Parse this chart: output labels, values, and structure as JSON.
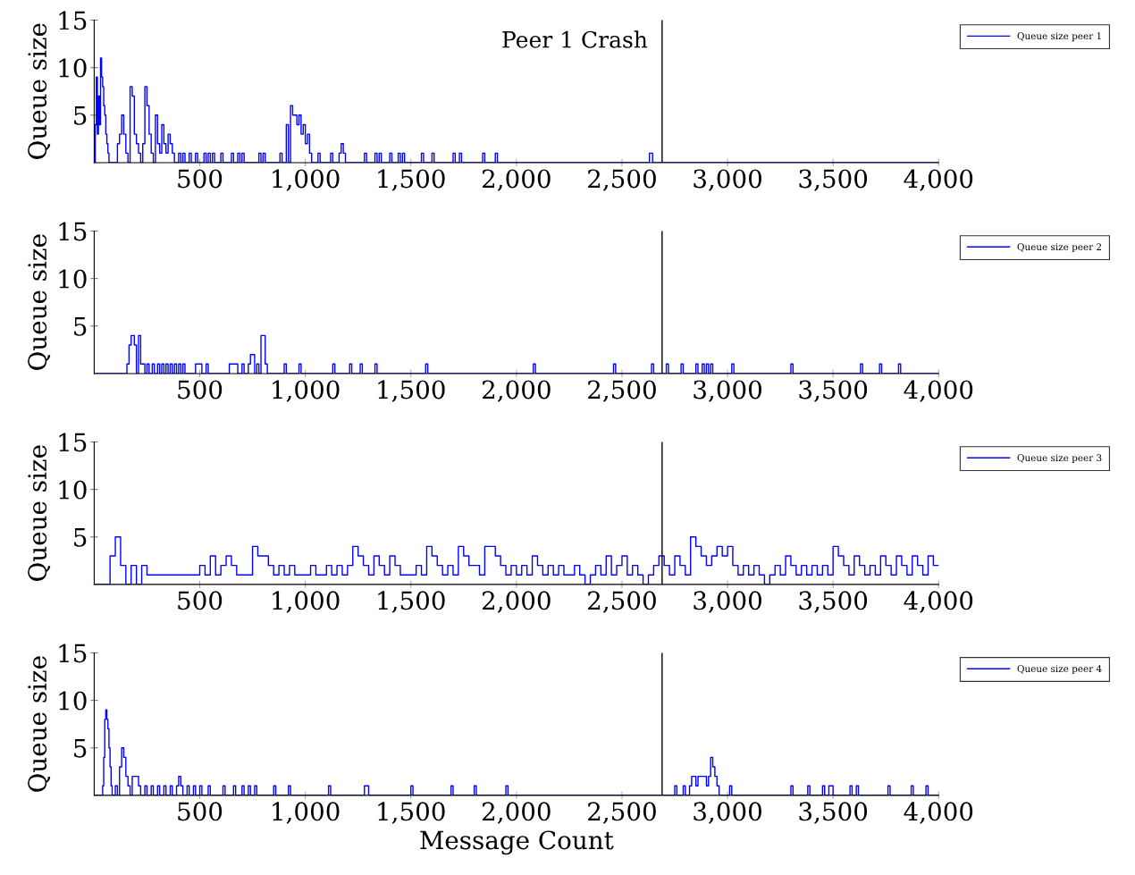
{
  "chart_data": [
    {
      "type": "step",
      "ylabel": "Queue size",
      "xlim": [
        0,
        4000
      ],
      "ylim": [
        0,
        15
      ],
      "xticks": [
        500,
        {
          "value": 1000,
          "label": "1,000"
        },
        {
          "value": 1500,
          "label": "1,500"
        },
        {
          "value": 2000,
          "label": "2,000"
        },
        {
          "value": 2500,
          "label": "2,500"
        },
        {
          "value": 3000,
          "label": "3,000"
        },
        {
          "value": 3500,
          "label": "3,500"
        },
        {
          "value": 4000,
          "label": "4,000"
        }
      ],
      "yticks": [
        5,
        10,
        15
      ],
      "legend": "right",
      "ref_lines": [
        {
          "axis": "x",
          "value": 2690,
          "color": "#000000",
          "label": "Peer 1 Crash"
        }
      ],
      "series": [
        {
          "name": "Queue size peer 1",
          "color": "#0000ff",
          "x": [
            0,
            5,
            10,
            15,
            20,
            25,
            30,
            35,
            40,
            45,
            50,
            55,
            60,
            65,
            70,
            110,
            120,
            130,
            140,
            150,
            160,
            170,
            180,
            190,
            200,
            210,
            220,
            230,
            240,
            250,
            260,
            270,
            280,
            290,
            300,
            310,
            320,
            330,
            340,
            350,
            360,
            370,
            380,
            400,
            410,
            420,
            430,
            450,
            460,
            480,
            490,
            520,
            530,
            540,
            550,
            560,
            570,
            600,
            610,
            650,
            660,
            680,
            690,
            700,
            710,
            780,
            790,
            800,
            810,
            880,
            890,
            910,
            920,
            930,
            940,
            950,
            960,
            970,
            980,
            990,
            1000,
            1010,
            1020,
            1030,
            1060,
            1070,
            1120,
            1130,
            1160,
            1170,
            1180,
            1190,
            1280,
            1290,
            1330,
            1340,
            1350,
            1360,
            1400,
            1410,
            1440,
            1450,
            1460,
            1470,
            1550,
            1560,
            1600,
            1610,
            1700,
            1710,
            1730,
            1740,
            1840,
            1850,
            1900,
            1910,
            2630,
            2645,
            4000
          ],
          "values": [
            0,
            4,
            9,
            3,
            7,
            4,
            11,
            9,
            8,
            6,
            5,
            3,
            2,
            1,
            0,
            2,
            3,
            5,
            3,
            1,
            0,
            8,
            7,
            3,
            2,
            1,
            0,
            2,
            8,
            6,
            3,
            1,
            0,
            5,
            2,
            1,
            4,
            2,
            1,
            3,
            2,
            1,
            0,
            1,
            0,
            1,
            0,
            1,
            0,
            1,
            0,
            1,
            0,
            1,
            0,
            1,
            0,
            1,
            0,
            1,
            0,
            1,
            0,
            1,
            0,
            1,
            0,
            1,
            0,
            1,
            0,
            4,
            0,
            6,
            5,
            5,
            4,
            5,
            3,
            4,
            2,
            3,
            1,
            0,
            1,
            0,
            1,
            0,
            1,
            2,
            1,
            0,
            1,
            0,
            1,
            0,
            1,
            0,
            1,
            0,
            1,
            0,
            1,
            0,
            1,
            0,
            1,
            0,
            1,
            0,
            1,
            0,
            1,
            0,
            1,
            0,
            1,
            0,
            0
          ]
        }
      ]
    },
    {
      "type": "step",
      "ylabel": "Queue size",
      "xlim": [
        0,
        4000
      ],
      "ylim": [
        0,
        15
      ],
      "xticks": [
        500,
        {
          "value": 1000,
          "label": "1,000"
        },
        {
          "value": 1500,
          "label": "1,500"
        },
        {
          "value": 2000,
          "label": "2,000"
        },
        {
          "value": 2500,
          "label": "2,500"
        },
        {
          "value": 3000,
          "label": "3,000"
        },
        {
          "value": 3500,
          "label": "3,500"
        },
        {
          "value": 4000,
          "label": "4,000"
        }
      ],
      "yticks": [
        5,
        10,
        15
      ],
      "legend": "right",
      "ref_lines": [
        {
          "axis": "x",
          "value": 2690,
          "color": "#000000"
        }
      ],
      "series": [
        {
          "name": "Queue size peer 2",
          "color": "#0000ff",
          "x": [
            0,
            155,
            165,
            175,
            190,
            200,
            210,
            220,
            230,
            240,
            250,
            260,
            275,
            285,
            300,
            310,
            320,
            330,
            340,
            350,
            360,
            370,
            380,
            390,
            400,
            410,
            420,
            430,
            480,
            510,
            530,
            540,
            640,
            680,
            700,
            710,
            730,
            740,
            760,
            770,
            780,
            790,
            810,
            820,
            900,
            910,
            970,
            980,
            1130,
            1140,
            1210,
            1220,
            1260,
            1270,
            1330,
            1340,
            1570,
            1580,
            2080,
            2090,
            2460,
            2470,
            2640,
            2650,
            2710,
            2720,
            2780,
            2790,
            2850,
            2860,
            2880,
            2890,
            2900,
            2910,
            2920,
            2930,
            3020,
            3030,
            3300,
            3310,
            3630,
            3640,
            3720,
            3730,
            3810,
            3820,
            4000
          ],
          "values": [
            0,
            1,
            3,
            4,
            3,
            0,
            4,
            1,
            1,
            0,
            1,
            0,
            1,
            0,
            1,
            0,
            1,
            0,
            1,
            0,
            1,
            0,
            1,
            0,
            1,
            0,
            1,
            0,
            1,
            0,
            1,
            0,
            1,
            0,
            1,
            0,
            1,
            2,
            0,
            1,
            0,
            4,
            1,
            0,
            1,
            0,
            1,
            0,
            1,
            0,
            1,
            0,
            1,
            0,
            1,
            0,
            1,
            0,
            1,
            0,
            1,
            0,
            1,
            0,
            1,
            0,
            1,
            0,
            1,
            0,
            1,
            0,
            1,
            0,
            1,
            0,
            1,
            0,
            1,
            0,
            1,
            0,
            1,
            0,
            1,
            0,
            0
          ]
        }
      ]
    },
    {
      "type": "step",
      "ylabel": "Queue size",
      "xlim": [
        0,
        4000
      ],
      "ylim": [
        0,
        15
      ],
      "xticks": [
        500,
        {
          "value": 1000,
          "label": "1,000"
        },
        {
          "value": 1500,
          "label": "1,500"
        },
        {
          "value": 2000,
          "label": "2,000"
        },
        {
          "value": 2500,
          "label": "2,500"
        },
        {
          "value": 3000,
          "label": "3,000"
        },
        {
          "value": 3500,
          "label": "3,500"
        },
        {
          "value": 4000,
          "label": "4,000"
        }
      ],
      "yticks": [
        5,
        10,
        15
      ],
      "legend": "right",
      "ref_lines": [
        {
          "axis": "x",
          "value": 2690,
          "color": "#000000"
        }
      ],
      "series": [
        {
          "name": "Queue size peer 3",
          "color": "#0000ff",
          "x": [
            0,
            25,
            50,
            75,
            100,
            125,
            150,
            175,
            200,
            225,
            250,
            275,
            300,
            325,
            350,
            375,
            400,
            425,
            450,
            475,
            500,
            525,
            550,
            575,
            600,
            625,
            650,
            675,
            700,
            725,
            750,
            775,
            800,
            825,
            850,
            875,
            900,
            925,
            950,
            975,
            1000,
            1025,
            1050,
            1075,
            1100,
            1125,
            1150,
            1175,
            1200,
            1225,
            1250,
            1275,
            1300,
            1325,
            1350,
            1375,
            1400,
            1425,
            1450,
            1475,
            1500,
            1525,
            1550,
            1575,
            1600,
            1625,
            1650,
            1675,
            1700,
            1725,
            1750,
            1775,
            1800,
            1825,
            1850,
            1875,
            1900,
            1925,
            1950,
            1975,
            2000,
            2025,
            2050,
            2075,
            2100,
            2125,
            2150,
            2175,
            2200,
            2225,
            2250,
            2275,
            2300,
            2325,
            2350,
            2375,
            2400,
            2425,
            2450,
            2475,
            2500,
            2525,
            2550,
            2575,
            2600,
            2625,
            2650,
            2675,
            2700,
            2725,
            2750,
            2775,
            2800,
            2825,
            2850,
            2875,
            2900,
            2925,
            2950,
            2975,
            3000,
            3025,
            3050,
            3075,
            3100,
            3125,
            3150,
            3175,
            3200,
            3225,
            3250,
            3275,
            3300,
            3325,
            3350,
            3375,
            3400,
            3425,
            3450,
            3475,
            3500,
            3525,
            3550,
            3575,
            3600,
            3625,
            3650,
            3675,
            3700,
            3725,
            3750,
            3775,
            3800,
            3825,
            3850,
            3875,
            3900,
            3925,
            3950,
            3975,
            4000
          ],
          "values": [
            0,
            0,
            0,
            3,
            5,
            2,
            0,
            2,
            0,
            2,
            1,
            1,
            1,
            1,
            1,
            1,
            1,
            1,
            1,
            1,
            2,
            1,
            3,
            1,
            2,
            3,
            2,
            1,
            1,
            1,
            4,
            3,
            3,
            2,
            1,
            2,
            1,
            2,
            1,
            1,
            1,
            2,
            1,
            1,
            2,
            1,
            2,
            1,
            2,
            4,
            3,
            2,
            1,
            3,
            2,
            1,
            3,
            2,
            1,
            1,
            1,
            2,
            1,
            4,
            3,
            2,
            1,
            2,
            1,
            4,
            3,
            2,
            2,
            1,
            4,
            4,
            3,
            2,
            1,
            2,
            1,
            2,
            1,
            3,
            2,
            1,
            2,
            1,
            2,
            1,
            1,
            2,
            1,
            0,
            1,
            2,
            1,
            3,
            1,
            2,
            3,
            1,
            2,
            1,
            0,
            1,
            2,
            3,
            2,
            1,
            3,
            2,
            1,
            5,
            4,
            3,
            2,
            3,
            4,
            3,
            4,
            2,
            1,
            2,
            1,
            2,
            1,
            0,
            1,
            2,
            1,
            3,
            2,
            1,
            2,
            1,
            2,
            1,
            2,
            1,
            4,
            3,
            2,
            1,
            3,
            2,
            1,
            2,
            1,
            3,
            2,
            1,
            3,
            2,
            1,
            3,
            2,
            1,
            3,
            2,
            2
          ]
        }
      ]
    },
    {
      "type": "step",
      "ylabel": "Queue size",
      "xlabel": "Message Count",
      "xlim": [
        0,
        4000
      ],
      "ylim": [
        0,
        15
      ],
      "xticks": [
        500,
        {
          "value": 1000,
          "label": "1,000"
        },
        {
          "value": 1500,
          "label": "1,500"
        },
        {
          "value": 2000,
          "label": "2,000"
        },
        {
          "value": 2500,
          "label": "2,500"
        },
        {
          "value": 3000,
          "label": "3,000"
        },
        {
          "value": 3500,
          "label": "3,500"
        },
        {
          "value": 4000,
          "label": "4,000"
        }
      ],
      "yticks": [
        5,
        10,
        15
      ],
      "legend": "right",
      "ref_lines": [
        {
          "axis": "x",
          "value": 2690,
          "color": "#000000"
        }
      ],
      "series": [
        {
          "name": "Queue size peer 4",
          "color": "#0000ff",
          "x": [
            0,
            40,
            45,
            50,
            55,
            60,
            65,
            70,
            75,
            80,
            85,
            100,
            110,
            120,
            130,
            140,
            150,
            160,
            170,
            180,
            200,
            210,
            220,
            240,
            250,
            270,
            280,
            300,
            310,
            330,
            340,
            360,
            370,
            390,
            400,
            410,
            420,
            440,
            450,
            470,
            480,
            500,
            510,
            540,
            550,
            610,
            620,
            660,
            670,
            700,
            710,
            730,
            740,
            760,
            770,
            850,
            860,
            920,
            930,
            1110,
            1120,
            1280,
            1300,
            1500,
            1510,
            1690,
            1700,
            1800,
            1810,
            1950,
            1960,
            2750,
            2760,
            2790,
            2800,
            2820,
            2830,
            2850,
            2860,
            2900,
            2910,
            2920,
            2930,
            2940,
            2950,
            2960,
            3010,
            3020,
            3300,
            3310,
            3380,
            3390,
            3450,
            3460,
            3480,
            3500,
            3580,
            3590,
            3610,
            3620,
            3760,
            3770,
            3870,
            3880,
            3940,
            3950,
            4000
          ],
          "values": [
            0,
            1,
            4,
            8,
            9,
            8,
            7,
            5,
            3,
            1,
            0,
            1,
            0,
            3,
            5,
            4,
            2,
            1,
            0,
            2,
            2,
            1,
            0,
            1,
            0,
            1,
            0,
            1,
            0,
            1,
            0,
            1,
            0,
            1,
            2,
            1,
            0,
            1,
            0,
            1,
            0,
            1,
            0,
            1,
            0,
            1,
            0,
            1,
            0,
            1,
            0,
            1,
            0,
            1,
            0,
            1,
            0,
            1,
            0,
            1,
            0,
            1,
            0,
            1,
            0,
            1,
            0,
            1,
            0,
            1,
            0,
            1,
            0,
            1,
            0,
            1,
            2,
            1,
            2,
            1,
            2,
            4,
            3,
            2,
            1,
            0,
            1,
            0,
            1,
            0,
            1,
            0,
            1,
            0,
            1,
            0,
            1,
            0,
            1,
            0,
            1,
            0,
            1,
            0,
            1,
            0,
            0
          ]
        }
      ]
    }
  ]
}
